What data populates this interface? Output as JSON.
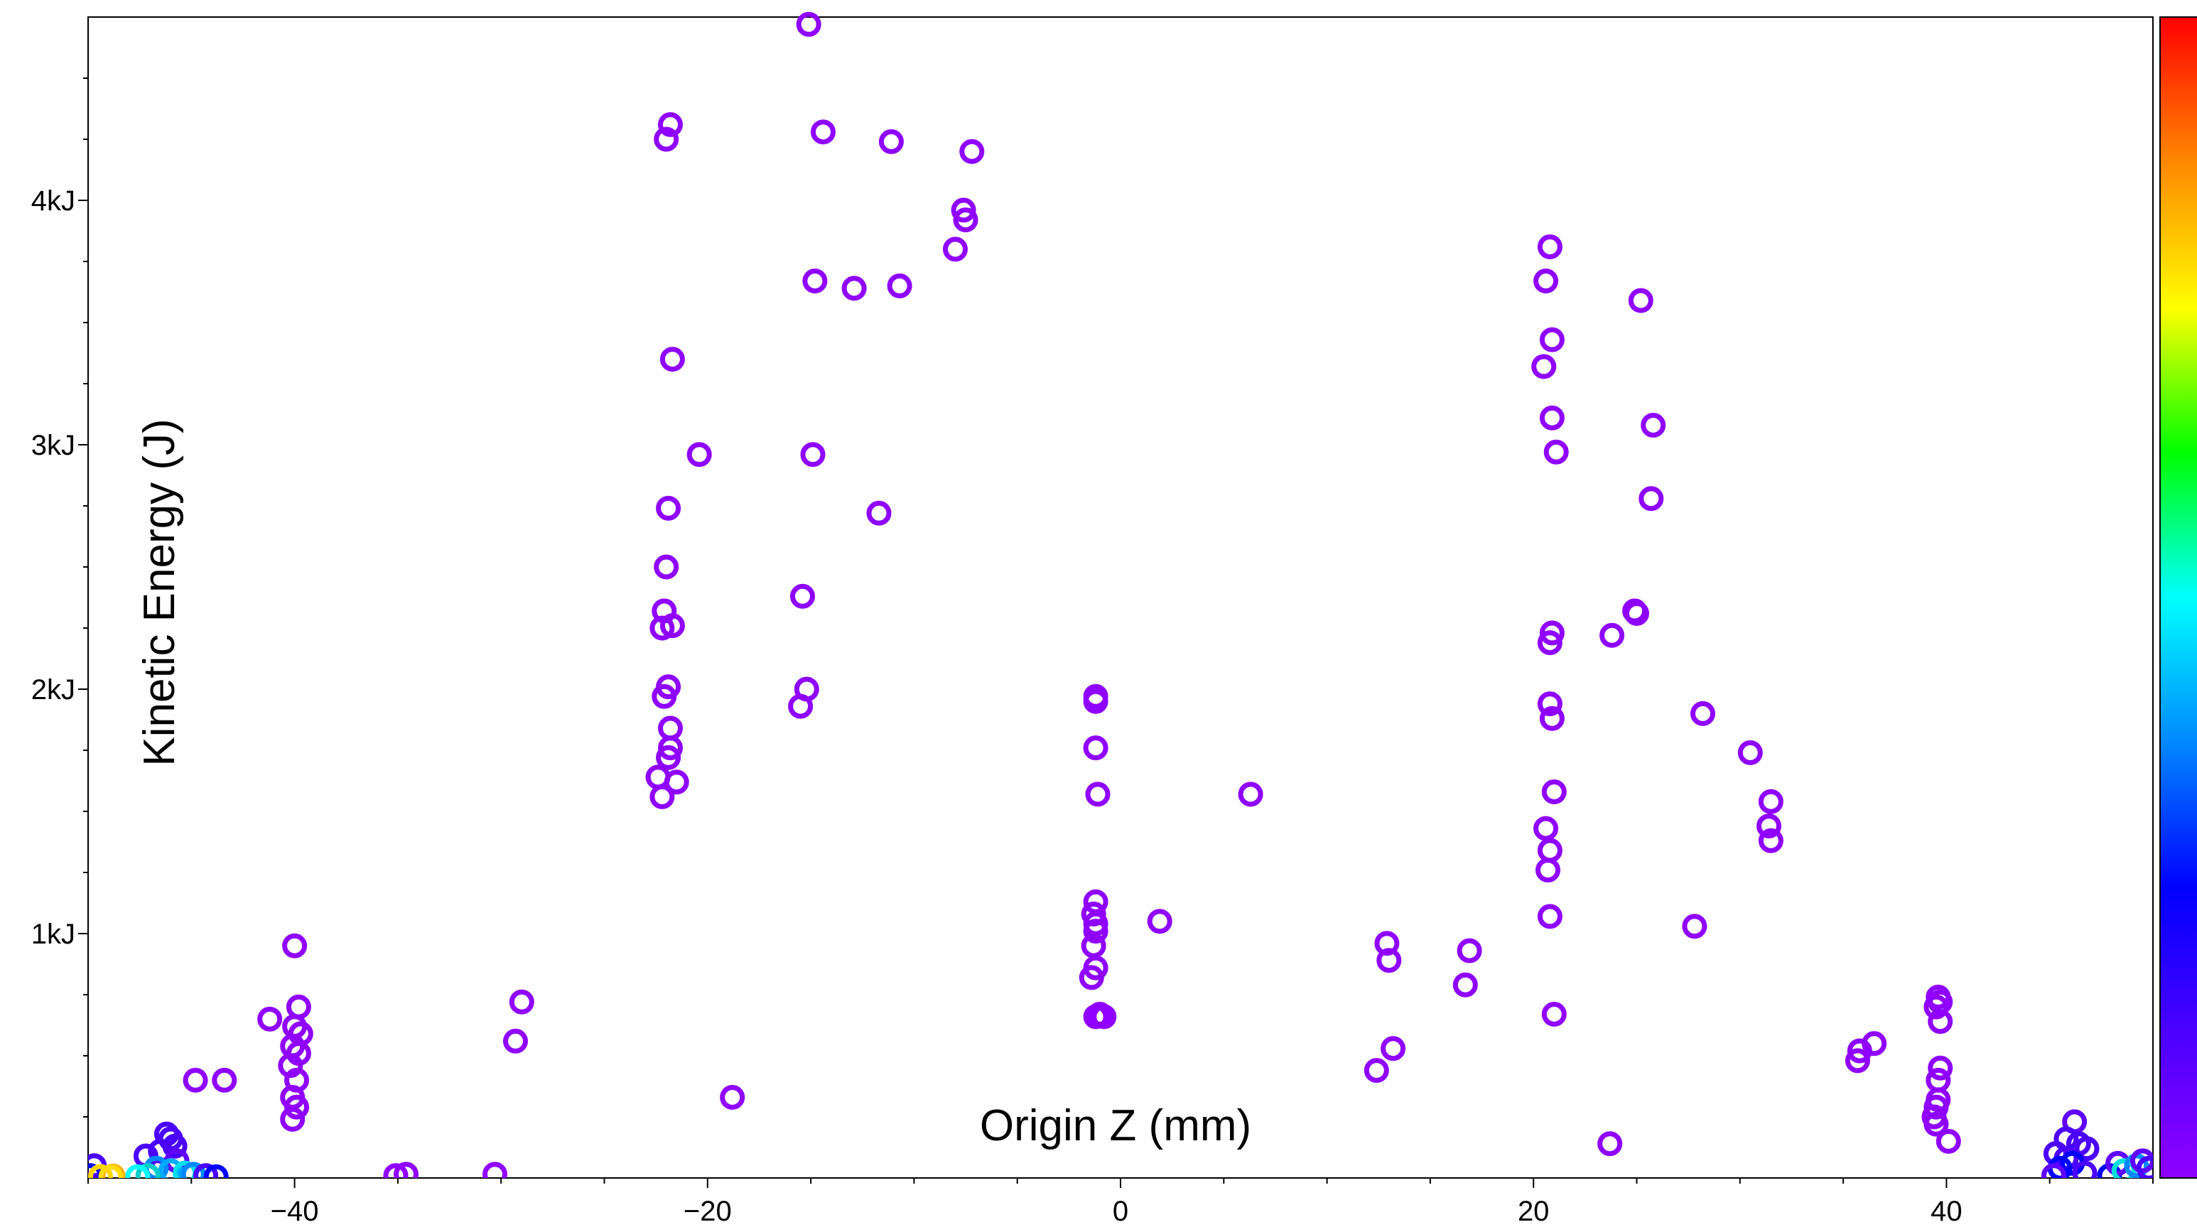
{
  "chart_data": {
    "type": "scatter",
    "title": "",
    "xlabel": "Origin Z (mm)",
    "ylabel": "Kinetic Energy (J)",
    "xlim": [
      -50,
      50
    ],
    "ylim": [
      0,
      4750
    ],
    "x_ticks": [
      -40,
      -20,
      0,
      20,
      40
    ],
    "x_tick_labels": [
      "−40",
      "−20",
      "0",
      "20",
      "40"
    ],
    "y_ticks": [
      1000,
      2000,
      3000,
      4000
    ],
    "y_tick_labels": [
      "1kJ",
      "2kJ",
      "3kJ",
      "4kJ"
    ],
    "grid": false,
    "legend": "none",
    "colorbar": {
      "position": "right",
      "colors": [
        "#8f00ff",
        "#4b00ff",
        "#0000ff",
        "#0088ff",
        "#00ffff",
        "#00ff00",
        "#ffff00",
        "#ff8800",
        "#ff0000"
      ],
      "tick_labels": []
    },
    "marker": "hollow-circle",
    "default_color": "#8f00ff",
    "points": [
      {
        "x": -15.1,
        "y": 4720
      },
      {
        "x": -21.8,
        "y": 4310
      },
      {
        "x": -22.0,
        "y": 4250
      },
      {
        "x": -14.4,
        "y": 4280
      },
      {
        "x": -11.1,
        "y": 4240
      },
      {
        "x": -7.2,
        "y": 4200
      },
      {
        "x": -7.6,
        "y": 3960
      },
      {
        "x": -7.5,
        "y": 3920
      },
      {
        "x": -8.0,
        "y": 3800
      },
      {
        "x": -14.8,
        "y": 3670
      },
      {
        "x": -12.9,
        "y": 3640
      },
      {
        "x": -10.7,
        "y": 3650
      },
      {
        "x": -21.7,
        "y": 3350
      },
      {
        "x": -20.4,
        "y": 2960
      },
      {
        "x": -14.9,
        "y": 2960
      },
      {
        "x": -11.7,
        "y": 2720
      },
      {
        "x": -21.9,
        "y": 2740
      },
      {
        "x": -22.0,
        "y": 2500
      },
      {
        "x": -22.1,
        "y": 2320
      },
      {
        "x": -22.2,
        "y": 2250
      },
      {
        "x": -21.7,
        "y": 2260
      },
      {
        "x": -15.4,
        "y": 2380
      },
      {
        "x": -15.2,
        "y": 2000
      },
      {
        "x": -15.5,
        "y": 1930
      },
      {
        "x": -21.9,
        "y": 2010
      },
      {
        "x": -22.1,
        "y": 1970
      },
      {
        "x": -21.8,
        "y": 1840
      },
      {
        "x": -21.8,
        "y": 1760
      },
      {
        "x": -21.9,
        "y": 1720
      },
      {
        "x": -22.4,
        "y": 1640
      },
      {
        "x": -21.5,
        "y": 1620
      },
      {
        "x": -22.2,
        "y": 1560
      },
      {
        "x": -40.0,
        "y": 950
      },
      {
        "x": -41.2,
        "y": 650
      },
      {
        "x": -39.8,
        "y": 700
      },
      {
        "x": -40.0,
        "y": 620
      },
      {
        "x": -39.7,
        "y": 590
      },
      {
        "x": -40.1,
        "y": 540
      },
      {
        "x": -39.8,
        "y": 510
      },
      {
        "x": -40.2,
        "y": 460
      },
      {
        "x": -39.9,
        "y": 400
      },
      {
        "x": -40.1,
        "y": 330
      },
      {
        "x": -39.9,
        "y": 290
      },
      {
        "x": -40.1,
        "y": 240
      },
      {
        "x": -44.8,
        "y": 400
      },
      {
        "x": -43.4,
        "y": 400
      },
      {
        "x": -29.0,
        "y": 720
      },
      {
        "x": -29.3,
        "y": 560
      },
      {
        "x": -18.8,
        "y": 330
      },
      {
        "x": -35.1,
        "y": 10
      },
      {
        "x": -34.6,
        "y": 15
      },
      {
        "x": -30.3,
        "y": 15
      },
      {
        "x": -1.2,
        "y": 1970
      },
      {
        "x": -1.2,
        "y": 1950
      },
      {
        "x": -1.2,
        "y": 1760
      },
      {
        "x": -1.1,
        "y": 1570
      },
      {
        "x": 6.3,
        "y": 1570
      },
      {
        "x": 1.9,
        "y": 1050
      },
      {
        "x": -1.2,
        "y": 1130
      },
      {
        "x": -1.3,
        "y": 1080
      },
      {
        "x": -1.2,
        "y": 1040
      },
      {
        "x": -1.2,
        "y": 1010
      },
      {
        "x": -1.3,
        "y": 950
      },
      {
        "x": -1.2,
        "y": 860
      },
      {
        "x": -1.4,
        "y": 820
      },
      {
        "x": -1.0,
        "y": 670
      },
      {
        "x": -1.2,
        "y": 660
      },
      {
        "x": -0.8,
        "y": 660
      },
      {
        "x": 12.9,
        "y": 960
      },
      {
        "x": 13.0,
        "y": 890
      },
      {
        "x": 13.2,
        "y": 530
      },
      {
        "x": 12.4,
        "y": 440
      },
      {
        "x": 16.9,
        "y": 930
      },
      {
        "x": 16.7,
        "y": 790
      },
      {
        "x": 20.8,
        "y": 3810
      },
      {
        "x": 20.6,
        "y": 3670
      },
      {
        "x": 20.9,
        "y": 3430
      },
      {
        "x": 20.5,
        "y": 3320
      },
      {
        "x": 20.9,
        "y": 3110
      },
      {
        "x": 21.1,
        "y": 2970
      },
      {
        "x": 20.9,
        "y": 2230
      },
      {
        "x": 20.8,
        "y": 2190
      },
      {
        "x": 20.8,
        "y": 1940
      },
      {
        "x": 20.9,
        "y": 1880
      },
      {
        "x": 21.0,
        "y": 1580
      },
      {
        "x": 20.6,
        "y": 1430
      },
      {
        "x": 20.8,
        "y": 1340
      },
      {
        "x": 20.7,
        "y": 1260
      },
      {
        "x": 20.8,
        "y": 1070
      },
      {
        "x": 21.0,
        "y": 670
      },
      {
        "x": 23.7,
        "y": 140
      },
      {
        "x": 23.8,
        "y": 2220
      },
      {
        "x": 25.0,
        "y": 2310
      },
      {
        "x": 24.9,
        "y": 2320
      },
      {
        "x": 25.2,
        "y": 3590
      },
      {
        "x": 25.8,
        "y": 3080
      },
      {
        "x": 25.7,
        "y": 2780
      },
      {
        "x": 28.2,
        "y": 1900
      },
      {
        "x": 27.8,
        "y": 1030
      },
      {
        "x": 30.5,
        "y": 1740
      },
      {
        "x": 31.5,
        "y": 1540
      },
      {
        "x": 31.4,
        "y": 1440
      },
      {
        "x": 31.5,
        "y": 1380
      },
      {
        "x": 35.8,
        "y": 520
      },
      {
        "x": 36.5,
        "y": 550
      },
      {
        "x": 35.7,
        "y": 480
      },
      {
        "x": 39.6,
        "y": 740
      },
      {
        "x": 39.7,
        "y": 720
      },
      {
        "x": 39.5,
        "y": 700
      },
      {
        "x": 39.7,
        "y": 640
      },
      {
        "x": 39.7,
        "y": 450
      },
      {
        "x": 39.6,
        "y": 400
      },
      {
        "x": 39.6,
        "y": 320
      },
      {
        "x": 39.5,
        "y": 290
      },
      {
        "x": 39.4,
        "y": 250
      },
      {
        "x": 39.5,
        "y": 220
      },
      {
        "x": 40.1,
        "y": 150
      },
      {
        "x": -46.2,
        "y": 180,
        "color": "#4b00ff"
      },
      {
        "x": -46.0,
        "y": 160,
        "color": "#4b00ff"
      },
      {
        "x": -45.8,
        "y": 130,
        "color": "#4b00ff"
      },
      {
        "x": -46.5,
        "y": 110,
        "color": "#4b00ff"
      },
      {
        "x": -47.2,
        "y": 90,
        "color": "#4b00ff"
      },
      {
        "x": -45.7,
        "y": 70,
        "color": "#6000ff"
      },
      {
        "x": -46.7,
        "y": 40,
        "color": "#0088ff"
      },
      {
        "x": -46.0,
        "y": 30,
        "color": "#00aaff"
      },
      {
        "x": -45.3,
        "y": 20,
        "color": "#00ddee"
      },
      {
        "x": -44.9,
        "y": 15,
        "color": "#0088ff"
      },
      {
        "x": -44.3,
        "y": 10,
        "color": "#4b00ff"
      },
      {
        "x": -43.8,
        "y": 5,
        "color": "#0000ff"
      },
      {
        "x": -47.1,
        "y": 10,
        "color": "#00cccc"
      },
      {
        "x": -47.6,
        "y": 5,
        "color": "#00ffff"
      },
      {
        "x": -49.7,
        "y": 50,
        "color": "#4b00ff"
      },
      {
        "x": -49.9,
        "y": 10,
        "color": "#0000ff"
      },
      {
        "x": -48.8,
        "y": 8,
        "color": "#ffb000"
      },
      {
        "x": -48.9,
        "y": 4,
        "color": "#ffdd00"
      },
      {
        "x": -49.4,
        "y": 6,
        "color": "#ffd700"
      },
      {
        "x": 46.2,
        "y": 230,
        "color": "#6000ff"
      },
      {
        "x": 45.8,
        "y": 160,
        "color": "#4b00ff"
      },
      {
        "x": 46.4,
        "y": 140,
        "color": "#4b00ff"
      },
      {
        "x": 46.8,
        "y": 120,
        "color": "#4b00ff"
      },
      {
        "x": 45.3,
        "y": 100,
        "color": "#4b00ff"
      },
      {
        "x": 45.8,
        "y": 80,
        "color": "#4b00ff"
      },
      {
        "x": 46.1,
        "y": 60,
        "color": "#0000ff"
      },
      {
        "x": 45.5,
        "y": 40,
        "color": "#0000ff"
      },
      {
        "x": 46.7,
        "y": 20,
        "color": "#4b00ff"
      },
      {
        "x": 45.2,
        "y": 10,
        "color": "#6000ff"
      },
      {
        "x": 47.9,
        "y": 10,
        "color": "#0000ff"
      },
      {
        "x": 48.3,
        "y": 60,
        "color": "#6000ff"
      },
      {
        "x": 48.6,
        "y": 30,
        "color": "#00dddd"
      },
      {
        "x": 49.2,
        "y": 50,
        "color": "#0088ff"
      },
      {
        "x": 49.5,
        "y": 70,
        "color": "#6000ff"
      },
      {
        "x": 49.8,
        "y": 40,
        "color": "#4b00ff"
      }
    ]
  }
}
